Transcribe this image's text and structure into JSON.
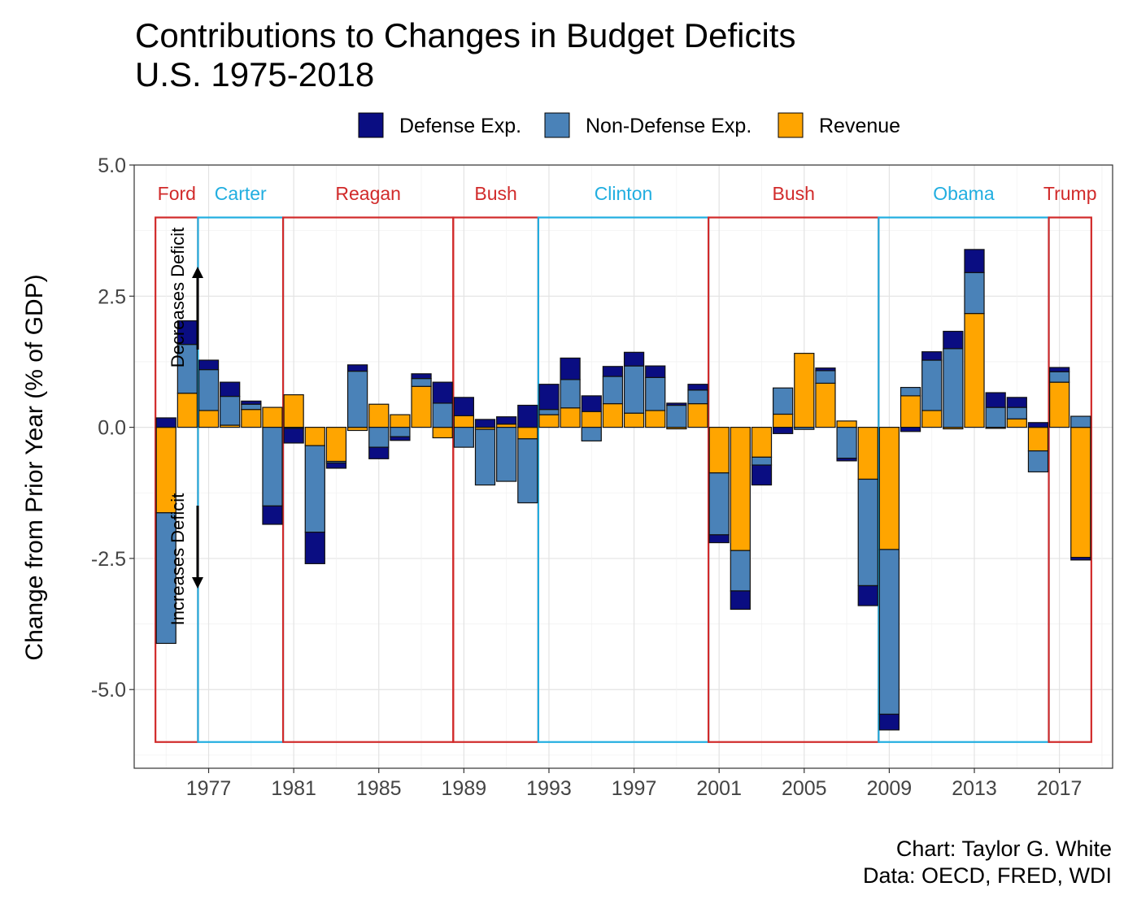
{
  "chart_data": {
    "type": "bar",
    "stacked": true,
    "title": "Contributions to Changes in Budget Deficits",
    "subtitle": "U.S. 1975-2018",
    "ylabel": "Change from Prior Year (% of GDP)",
    "xlabel": "",
    "ylim": [
      -6.5,
      5.0
    ],
    "yticks": [
      5.0,
      2.5,
      0.0,
      -2.5,
      -5.0
    ],
    "ytick_labels": [
      "5.0",
      "2.5",
      "0.0",
      "-2.5",
      "-5.0"
    ],
    "xlim": [
      1973.5,
      2019.5
    ],
    "xticks": [
      1977,
      1981,
      1985,
      1989,
      1993,
      1997,
      2001,
      2005,
      2009,
      2013,
      2017
    ],
    "xtick_labels": [
      "1977",
      "1981",
      "1985",
      "1989",
      "1993",
      "1997",
      "2001",
      "2005",
      "2009",
      "2013",
      "2017"
    ],
    "grid": true,
    "legend_position": "top",
    "series_colors": {
      "Defense Exp.": "#0a0d82",
      "Non-Defense Exp.": "#4a82b8",
      "Revenue": "#ffa500"
    },
    "x": [
      1975,
      1976,
      1977,
      1978,
      1979,
      1980,
      1981,
      1982,
      1983,
      1984,
      1985,
      1986,
      1987,
      1988,
      1989,
      1990,
      1991,
      1992,
      1993,
      1994,
      1995,
      1996,
      1997,
      1998,
      1999,
      2000,
      2001,
      2002,
      2003,
      2004,
      2005,
      2006,
      2007,
      2008,
      2009,
      2010,
      2011,
      2012,
      2013,
      2014,
      2015,
      2016,
      2017,
      2018
    ],
    "series": [
      {
        "name": "Revenue",
        "values": [
          -1.63,
          0.65,
          0.32,
          0.04,
          0.34,
          0.38,
          0.62,
          -0.35,
          -0.65,
          -0.06,
          0.44,
          0.24,
          0.78,
          -0.2,
          0.22,
          -0.04,
          0.06,
          -0.22,
          0.24,
          0.37,
          0.3,
          0.45,
          0.27,
          0.32,
          -0.03,
          0.45,
          -0.87,
          -2.35,
          -0.57,
          0.25,
          1.41,
          0.84,
          0.12,
          -0.99,
          -2.33,
          0.6,
          0.32,
          -0.03,
          2.17,
          -0.02,
          0.16,
          -0.45,
          0.86,
          -2.48
        ]
      },
      {
        "name": "Non-Defense Exp.",
        "values": [
          -2.49,
          0.93,
          0.78,
          0.55,
          0.1,
          -1.5,
          -0.02,
          -1.65,
          -0.03,
          1.07,
          -0.38,
          -0.18,
          0.15,
          0.46,
          -0.38,
          -1.06,
          -1.03,
          -1.22,
          0.1,
          0.54,
          -0.26,
          0.52,
          0.9,
          0.63,
          0.42,
          0.26,
          -1.18,
          -0.77,
          -0.15,
          0.5,
          -0.04,
          0.24,
          -0.59,
          -2.03,
          -3.14,
          0.16,
          0.96,
          1.5,
          0.78,
          0.38,
          0.22,
          -0.4,
          0.2,
          0.21
        ]
      },
      {
        "name": "Defense Exp.",
        "values": [
          0.18,
          0.45,
          0.18,
          0.27,
          0.06,
          -0.35,
          -0.28,
          -0.6,
          -0.1,
          0.12,
          -0.22,
          -0.07,
          0.09,
          0.4,
          0.35,
          0.15,
          0.14,
          0.42,
          0.48,
          0.41,
          0.3,
          0.19,
          0.26,
          0.22,
          0.04,
          0.11,
          -0.15,
          -0.35,
          -0.38,
          -0.12,
          0.0,
          0.05,
          -0.05,
          -0.38,
          -0.3,
          -0.08,
          0.16,
          0.33,
          0.44,
          0.28,
          0.19,
          0.09,
          0.08,
          -0.05
        ]
      }
    ],
    "annotations": {
      "arrow_up_label": "Decreases Deficit",
      "arrow_down_label": "Increases Deficit"
    },
    "presidents": [
      {
        "name": "Ford",
        "color": "#d12a2a",
        "start": 1975,
        "end": 1976
      },
      {
        "name": "Carter",
        "color": "#21aee0",
        "start": 1977,
        "end": 1980
      },
      {
        "name": "Reagan",
        "color": "#d12a2a",
        "start": 1981,
        "end": 1988
      },
      {
        "name": "Bush",
        "color": "#d12a2a",
        "start": 1989,
        "end": 1992
      },
      {
        "name": "Clinton",
        "color": "#21aee0",
        "start": 1993,
        "end": 2000
      },
      {
        "name": "Bush",
        "color": "#d12a2a",
        "start": 2001,
        "end": 2008
      },
      {
        "name": "Obama",
        "color": "#21aee0",
        "start": 2009,
        "end": 2016
      },
      {
        "name": "Trump",
        "color": "#d12a2a",
        "start": 2017,
        "end": 2018
      }
    ],
    "president_box_range": [
      -6.0,
      4.0
    ]
  },
  "caption": {
    "line1": "Chart: Taylor G. White",
    "line2": "Data: OECD, FRED, WDI"
  }
}
